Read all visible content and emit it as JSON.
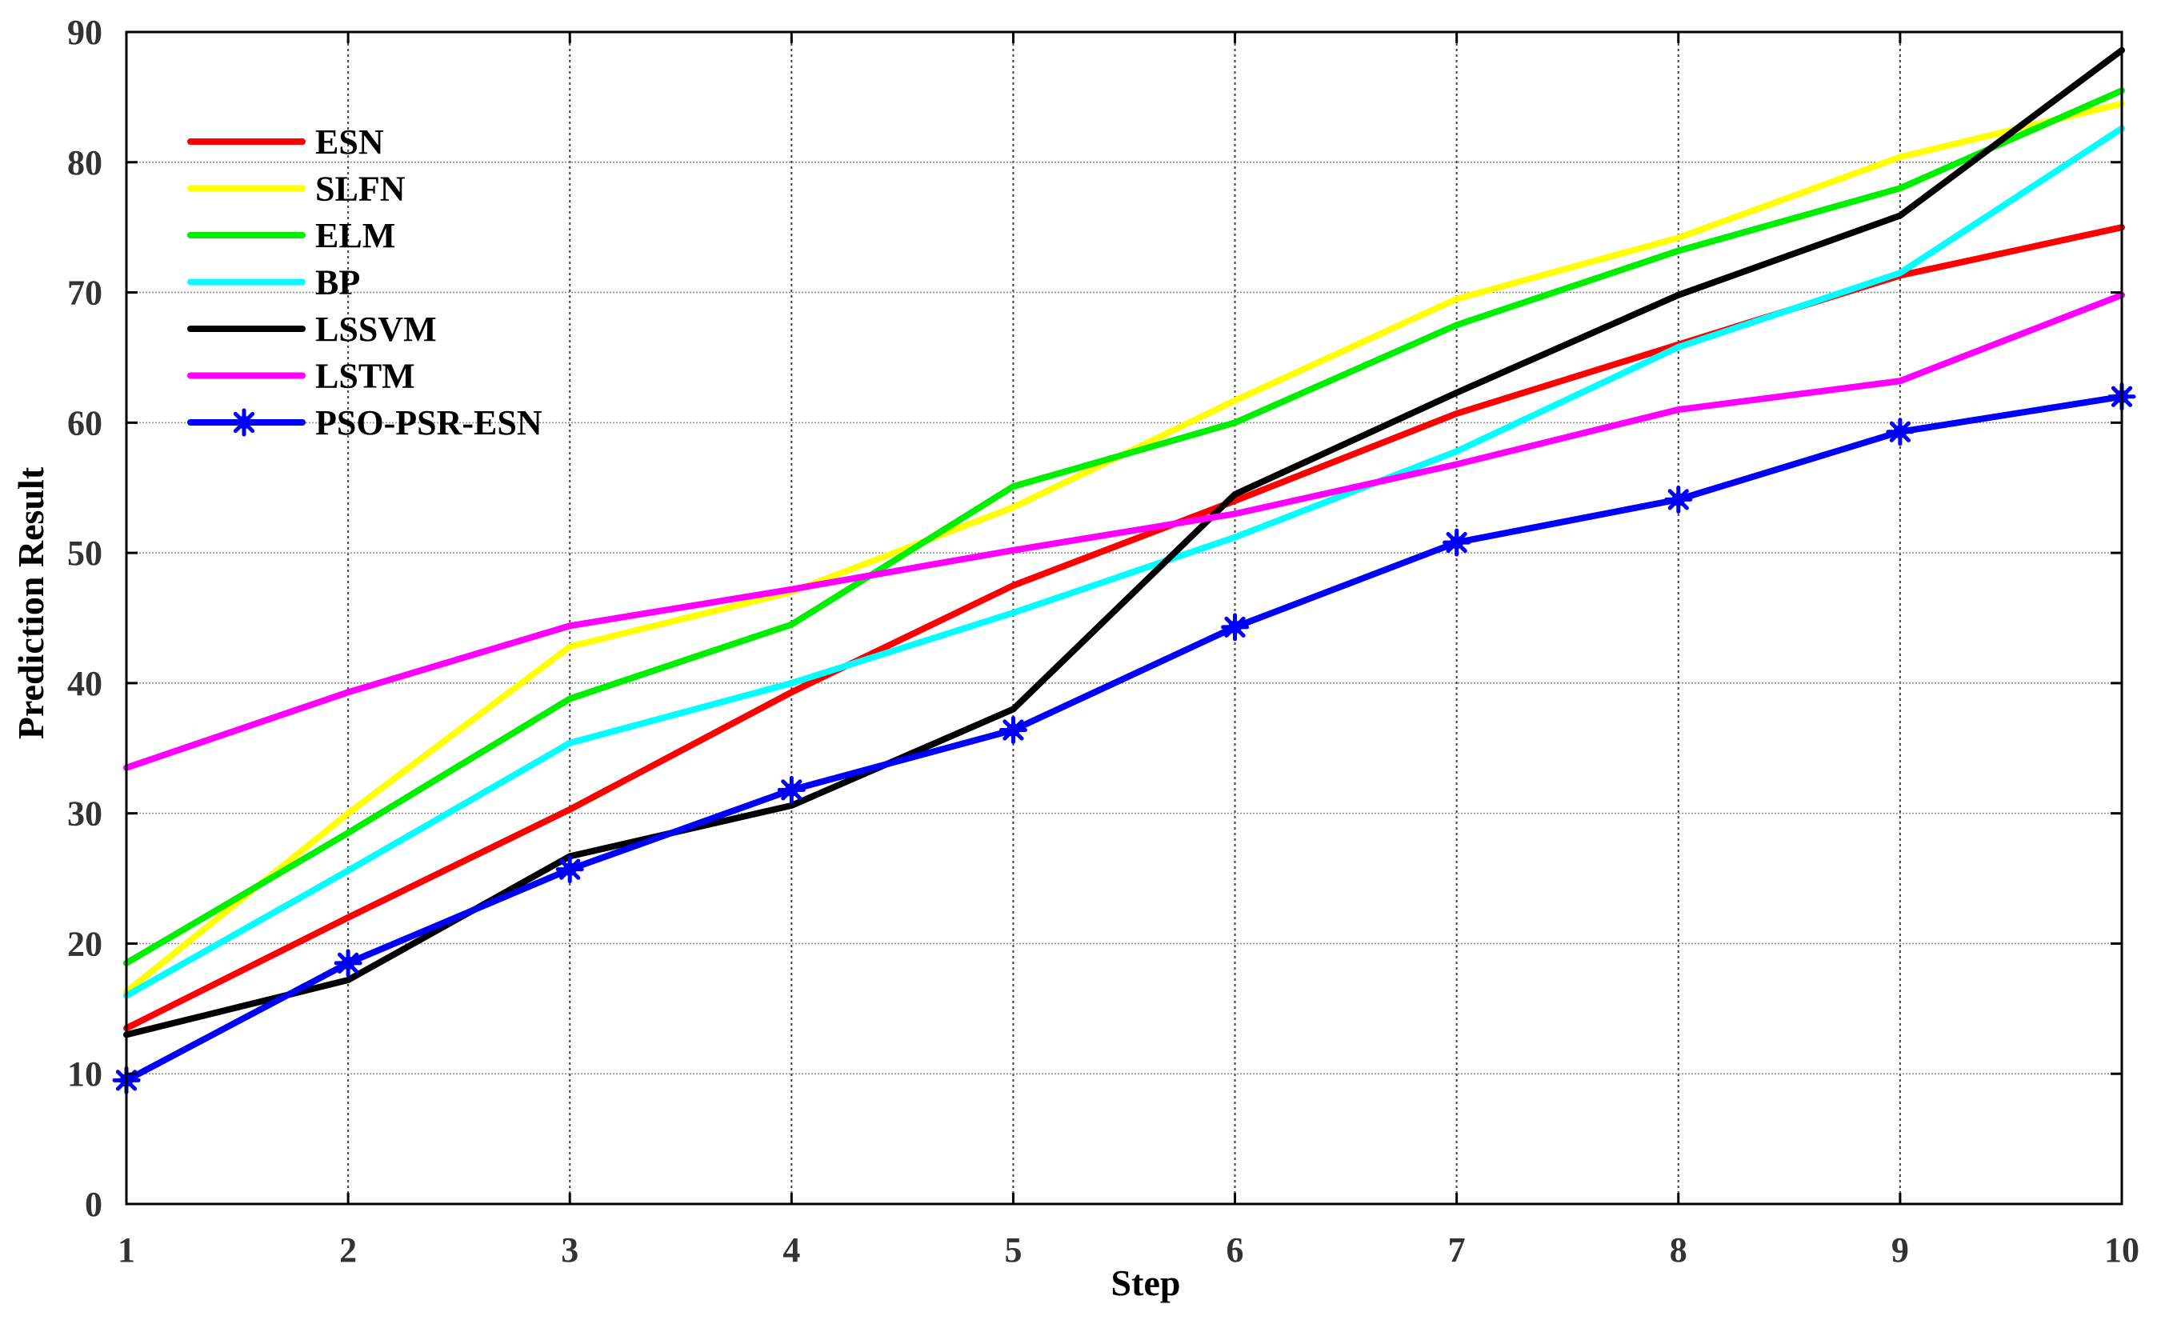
{
  "chart_data": {
    "type": "line",
    "xlabel": "Step",
    "ylabel": "Prediction Result",
    "x": [
      1,
      2,
      3,
      4,
      5,
      6,
      7,
      8,
      9,
      10
    ],
    "xlim": [
      1,
      10
    ],
    "ylim": [
      0,
      90
    ],
    "xticks": [
      "1",
      "2",
      "3",
      "4",
      "5",
      "6",
      "7",
      "8",
      "9",
      "10"
    ],
    "yticks": [
      "0",
      "10",
      "20",
      "30",
      "40",
      "50",
      "60",
      "70",
      "80",
      "90"
    ],
    "grid": true,
    "legend_position": "top-left",
    "series": [
      {
        "name": "ESN",
        "color": "#ff0000",
        "marker": "none",
        "values": [
          13.5,
          22,
          30.3,
          39.3,
          47.5,
          54,
          60.7,
          66,
          71.3,
          75
        ]
      },
      {
        "name": "SLFN",
        "color": "#ffff00",
        "marker": "none",
        "values": [
          16.3,
          30,
          42.8,
          47,
          53.5,
          61.7,
          69.5,
          74.2,
          80.4,
          84.5
        ]
      },
      {
        "name": "ELM",
        "color": "#00ee00",
        "marker": "none",
        "values": [
          18.5,
          28.5,
          38.8,
          44.5,
          55.1,
          60,
          67.5,
          73.2,
          78,
          85.5
        ]
      },
      {
        "name": "BP",
        "color": "#00ffff",
        "marker": "none",
        "values": [
          16,
          25.6,
          35.4,
          40,
          45.4,
          51.2,
          57.8,
          65.8,
          71.5,
          82.6
        ]
      },
      {
        "name": "LSSVM",
        "color": "#000000",
        "marker": "none",
        "values": [
          13,
          17.2,
          26.7,
          30.6,
          38,
          54.5,
          62.3,
          69.8,
          75.9,
          88.6
        ]
      },
      {
        "name": "LSTM",
        "color": "#ff00ff",
        "marker": "none",
        "values": [
          33.5,
          39.3,
          44.4,
          47.2,
          50.2,
          53,
          56.8,
          61,
          63.2,
          69.8
        ]
      },
      {
        "name": "PSO-PSR-ESN",
        "color": "#0000ff",
        "marker": "asterisk",
        "values": [
          9.5,
          18.5,
          25.7,
          31.8,
          36.4,
          44.3,
          50.8,
          54.1,
          59.3,
          62
        ]
      }
    ]
  }
}
